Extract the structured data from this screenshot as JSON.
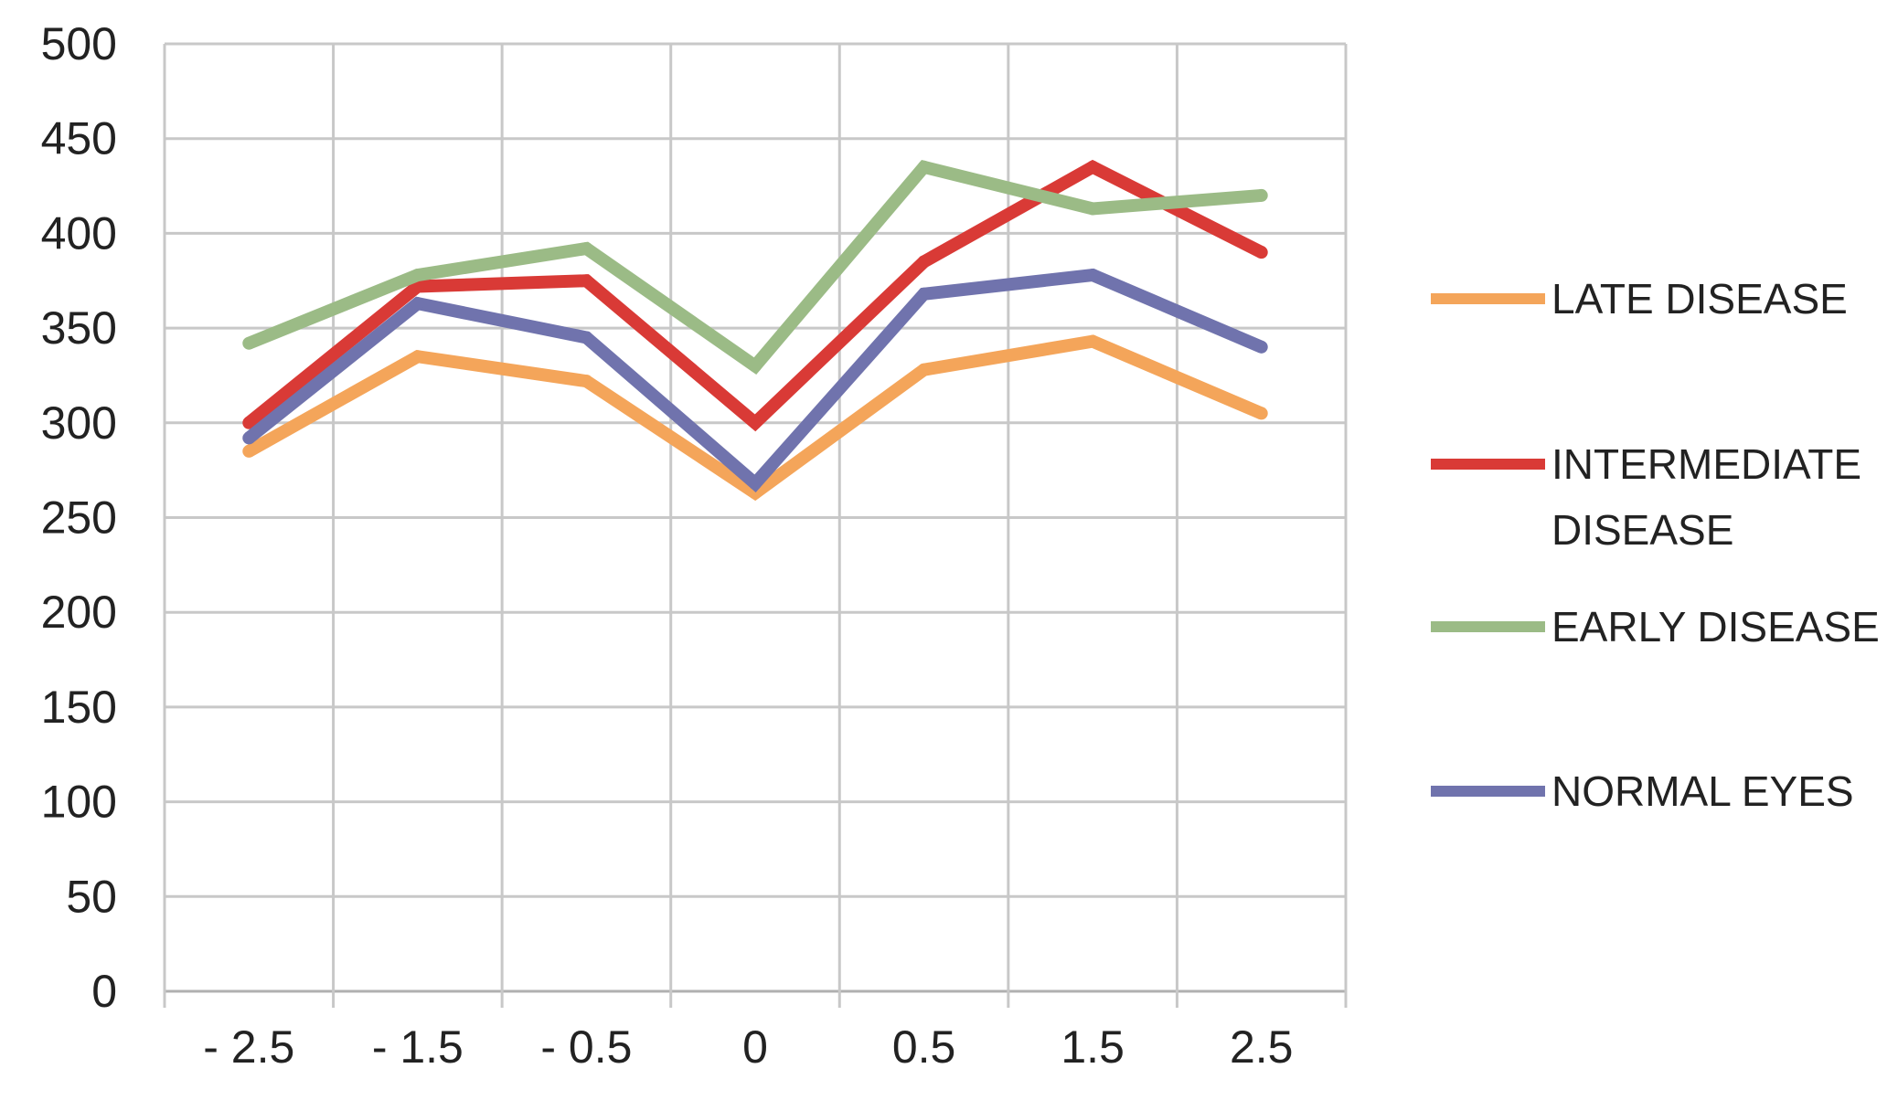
{
  "chart_data": {
    "type": "line",
    "categories": [
      "- 2.5",
      "- 1.5",
      "- 0.5",
      "0",
      "0.5",
      "1.5",
      "2.5"
    ],
    "ylim": [
      0,
      500
    ],
    "yticks": [
      "0",
      "50",
      "100",
      "150",
      "200",
      "250",
      "300",
      "350",
      "400",
      "450",
      "500"
    ],
    "grid": true,
    "legend_position": "right",
    "series": [
      {
        "name": "LATE DISEASE",
        "color": "#f4a55a",
        "values": [
          285,
          335,
          322,
          263,
          328,
          343,
          305
        ]
      },
      {
        "name": "INTERMEDIATE DISEASE",
        "color": "#d93a36",
        "values": [
          300,
          372,
          375,
          300,
          385,
          435,
          390
        ]
      },
      {
        "name": "EARLY DISEASE",
        "color": "#9bbb86",
        "values": [
          342,
          378,
          392,
          330,
          435,
          413,
          420
        ]
      },
      {
        "name": "NORMAL EYES",
        "color": "#7073ad",
        "values": [
          292,
          363,
          345,
          268,
          368,
          378,
          340
        ]
      }
    ],
    "legend_lines": [
      [
        "LATE DISEASE"
      ],
      [
        "INTERMEDIATE",
        "DISEASE"
      ],
      [
        "EARLY DISEASE"
      ],
      [
        "NORMAL EYES"
      ]
    ]
  }
}
